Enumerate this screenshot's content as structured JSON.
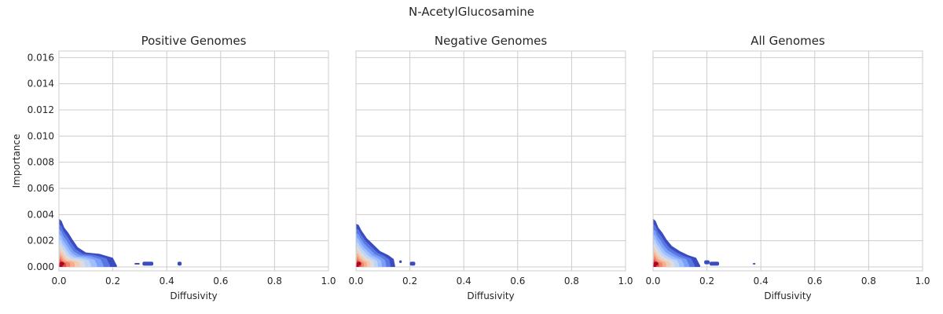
{
  "figure": {
    "title": "N-AcetylGlucosamine"
  },
  "colors": {
    "grid": "#cccccc",
    "frame": "#cccccc",
    "density_low": "#3b4cc0",
    "density_high": "#b40426",
    "text": "#262626"
  },
  "chart_data": [
    {
      "type": "area",
      "kind": "filled-density-contour",
      "title": "Positive Genomes",
      "xlabel": "Diffusivity",
      "ylabel": "Importance",
      "xlim": [
        0.0,
        1.0
      ],
      "ylim": [
        -0.0003,
        0.0165
      ],
      "xticks": [
        "0.0",
        "0.2",
        "0.4",
        "0.6",
        "0.8",
        "1.0"
      ],
      "yticks": [
        "0.000",
        "0.002",
        "0.004",
        "0.006",
        "0.008",
        "0.010",
        "0.012",
        "0.014",
        "0.016"
      ],
      "grid": true,
      "colormap": "coolwarm",
      "peak": [
        0.005,
        0.00025
      ],
      "outer_boundary": [
        [
          0.0,
          0.0037
        ],
        [
          0.01,
          0.0035
        ],
        [
          0.02,
          0.003
        ],
        [
          0.035,
          0.0026
        ],
        [
          0.05,
          0.0021
        ],
        [
          0.07,
          0.0015
        ],
        [
          0.1,
          0.0011
        ],
        [
          0.15,
          0.001
        ],
        [
          0.2,
          0.0007
        ],
        [
          0.215,
          0.0001
        ]
      ],
      "islands": [
        [
          0.28,
          0.3,
          0.0002,
          0.0003
        ],
        [
          0.31,
          0.35,
          0.0001,
          0.0004
        ],
        [
          0.44,
          0.455,
          0.0001,
          0.0004
        ]
      ]
    },
    {
      "type": "area",
      "kind": "filled-density-contour",
      "title": "Negative Genomes",
      "xlabel": "Diffusivity",
      "ylabel": "",
      "xlim": [
        0.0,
        1.0
      ],
      "ylim": [
        -0.0003,
        0.0165
      ],
      "xticks": [
        "0.0",
        "0.2",
        "0.4",
        "0.6",
        "0.8",
        "1.0"
      ],
      "yticks": [],
      "grid": true,
      "colormap": "coolwarm",
      "peak": [
        0.005,
        0.00025
      ],
      "outer_boundary": [
        [
          0.0,
          0.0033
        ],
        [
          0.01,
          0.0032
        ],
        [
          0.02,
          0.0028
        ],
        [
          0.04,
          0.0022
        ],
        [
          0.06,
          0.0018
        ],
        [
          0.09,
          0.0012
        ],
        [
          0.12,
          0.0009
        ],
        [
          0.14,
          0.0006
        ],
        [
          0.145,
          0.0001
        ]
      ],
      "islands": [
        [
          0.16,
          0.17,
          0.0003,
          0.0005
        ],
        [
          0.2,
          0.22,
          0.0001,
          0.0004
        ]
      ]
    },
    {
      "type": "area",
      "kind": "filled-density-contour",
      "title": "All Genomes",
      "xlabel": "Diffusivity",
      "ylabel": "",
      "xlim": [
        0.0,
        1.0
      ],
      "ylim": [
        -0.0003,
        0.0165
      ],
      "xticks": [
        "0.0",
        "0.2",
        "0.4",
        "0.6",
        "0.8",
        "1.0"
      ],
      "yticks": [],
      "grid": true,
      "colormap": "coolwarm",
      "peak": [
        0.005,
        0.00025
      ],
      "outer_boundary": [
        [
          0.0,
          0.0037
        ],
        [
          0.01,
          0.0035
        ],
        [
          0.02,
          0.003
        ],
        [
          0.035,
          0.0026
        ],
        [
          0.05,
          0.0021
        ],
        [
          0.07,
          0.0016
        ],
        [
          0.1,
          0.0012
        ],
        [
          0.13,
          0.0009
        ],
        [
          0.16,
          0.0007
        ],
        [
          0.175,
          0.0001
        ]
      ],
      "islands": [
        [
          0.19,
          0.21,
          0.0002,
          0.0005
        ],
        [
          0.21,
          0.245,
          0.0001,
          0.0004
        ],
        [
          0.37,
          0.38,
          0.0002,
          0.0003
        ]
      ]
    }
  ]
}
